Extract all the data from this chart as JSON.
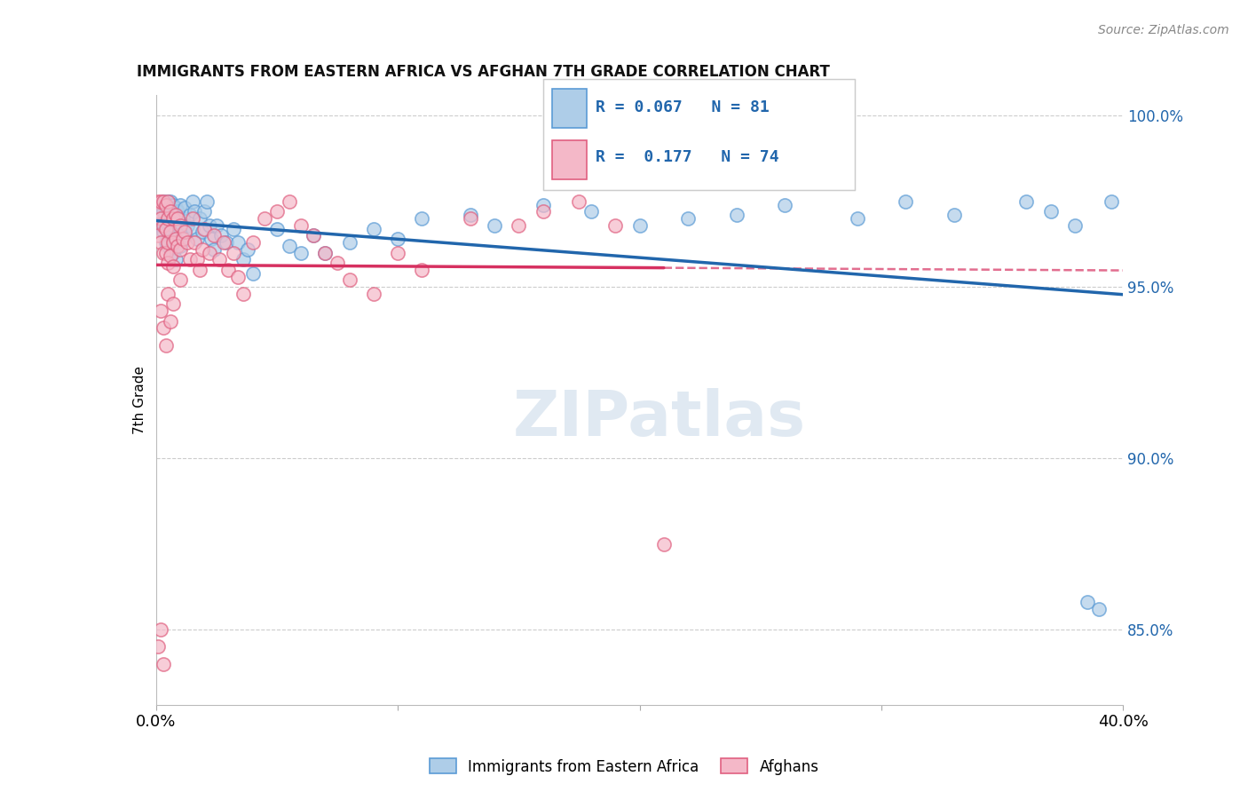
{
  "title": "IMMIGRANTS FROM EASTERN AFRICA VS AFGHAN 7TH GRADE CORRELATION CHART",
  "source": "Source: ZipAtlas.com",
  "ylabel": "7th Grade",
  "xlim": [
    0.0,
    0.4
  ],
  "ylim": [
    0.828,
    1.006
  ],
  "blue_R": 0.067,
  "blue_N": 81,
  "pink_R": 0.177,
  "pink_N": 74,
  "blue_color": "#aecde8",
  "pink_color": "#f4b8c8",
  "blue_edge_color": "#5b9bd5",
  "pink_edge_color": "#e06080",
  "blue_line_color": "#2166ac",
  "pink_line_color": "#d63060",
  "legend_label_blue": "Immigrants from Eastern Africa",
  "legend_label_pink": "Afghans",
  "watermark": "ZIPatlas",
  "blue_x": [
    0.001,
    0.001,
    0.002,
    0.002,
    0.003,
    0.003,
    0.003,
    0.004,
    0.004,
    0.004,
    0.005,
    0.005,
    0.005,
    0.005,
    0.006,
    0.006,
    0.006,
    0.006,
    0.007,
    0.007,
    0.007,
    0.007,
    0.008,
    0.008,
    0.008,
    0.009,
    0.009,
    0.01,
    0.01,
    0.01,
    0.011,
    0.011,
    0.012,
    0.012,
    0.013,
    0.014,
    0.015,
    0.015,
    0.016,
    0.017,
    0.018,
    0.019,
    0.02,
    0.021,
    0.022,
    0.023,
    0.024,
    0.025,
    0.027,
    0.029,
    0.032,
    0.034,
    0.036,
    0.038,
    0.04,
    0.05,
    0.055,
    0.06,
    0.065,
    0.07,
    0.08,
    0.09,
    0.1,
    0.11,
    0.13,
    0.14,
    0.16,
    0.18,
    0.2,
    0.22,
    0.24,
    0.26,
    0.29,
    0.31,
    0.33,
    0.36,
    0.37,
    0.38,
    0.385,
    0.39,
    0.395
  ],
  "blue_y": [
    0.974,
    0.97,
    0.971,
    0.968,
    0.975,
    0.972,
    0.966,
    0.973,
    0.969,
    0.963,
    0.975,
    0.97,
    0.966,
    0.962,
    0.975,
    0.971,
    0.967,
    0.961,
    0.974,
    0.968,
    0.964,
    0.96,
    0.973,
    0.969,
    0.958,
    0.972,
    0.965,
    0.974,
    0.967,
    0.962,
    0.97,
    0.964,
    0.973,
    0.966,
    0.968,
    0.971,
    0.975,
    0.967,
    0.972,
    0.964,
    0.97,
    0.966,
    0.972,
    0.975,
    0.968,
    0.964,
    0.961,
    0.968,
    0.965,
    0.963,
    0.967,
    0.963,
    0.958,
    0.961,
    0.954,
    0.967,
    0.962,
    0.96,
    0.965,
    0.96,
    0.963,
    0.967,
    0.964,
    0.97,
    0.971,
    0.968,
    0.974,
    0.972,
    0.968,
    0.97,
    0.971,
    0.974,
    0.97,
    0.975,
    0.971,
    0.975,
    0.972,
    0.968,
    0.858,
    0.856,
    0.975
  ],
  "pink_x": [
    0.001,
    0.001,
    0.001,
    0.002,
    0.002,
    0.002,
    0.003,
    0.003,
    0.003,
    0.004,
    0.004,
    0.004,
    0.005,
    0.005,
    0.005,
    0.005,
    0.006,
    0.006,
    0.006,
    0.007,
    0.007,
    0.007,
    0.008,
    0.008,
    0.009,
    0.009,
    0.01,
    0.01,
    0.011,
    0.012,
    0.013,
    0.014,
    0.015,
    0.016,
    0.017,
    0.018,
    0.019,
    0.02,
    0.022,
    0.024,
    0.026,
    0.028,
    0.03,
    0.032,
    0.034,
    0.036,
    0.04,
    0.045,
    0.05,
    0.055,
    0.06,
    0.065,
    0.07,
    0.075,
    0.08,
    0.09,
    0.1,
    0.11,
    0.13,
    0.15,
    0.16,
    0.175,
    0.19,
    0.21,
    0.01,
    0.005,
    0.002,
    0.003,
    0.004,
    0.006,
    0.007,
    0.002,
    0.001,
    0.003
  ],
  "pink_y": [
    0.975,
    0.972,
    0.965,
    0.975,
    0.97,
    0.963,
    0.975,
    0.968,
    0.96,
    0.974,
    0.967,
    0.96,
    0.975,
    0.97,
    0.963,
    0.957,
    0.972,
    0.966,
    0.959,
    0.97,
    0.963,
    0.956,
    0.971,
    0.964,
    0.97,
    0.962,
    0.968,
    0.961,
    0.964,
    0.966,
    0.963,
    0.958,
    0.97,
    0.963,
    0.958,
    0.955,
    0.961,
    0.967,
    0.96,
    0.965,
    0.958,
    0.963,
    0.955,
    0.96,
    0.953,
    0.948,
    0.963,
    0.97,
    0.972,
    0.975,
    0.968,
    0.965,
    0.96,
    0.957,
    0.952,
    0.948,
    0.96,
    0.955,
    0.97,
    0.968,
    0.972,
    0.975,
    0.968,
    0.875,
    0.952,
    0.948,
    0.943,
    0.938,
    0.933,
    0.94,
    0.945,
    0.85,
    0.845,
    0.84
  ]
}
